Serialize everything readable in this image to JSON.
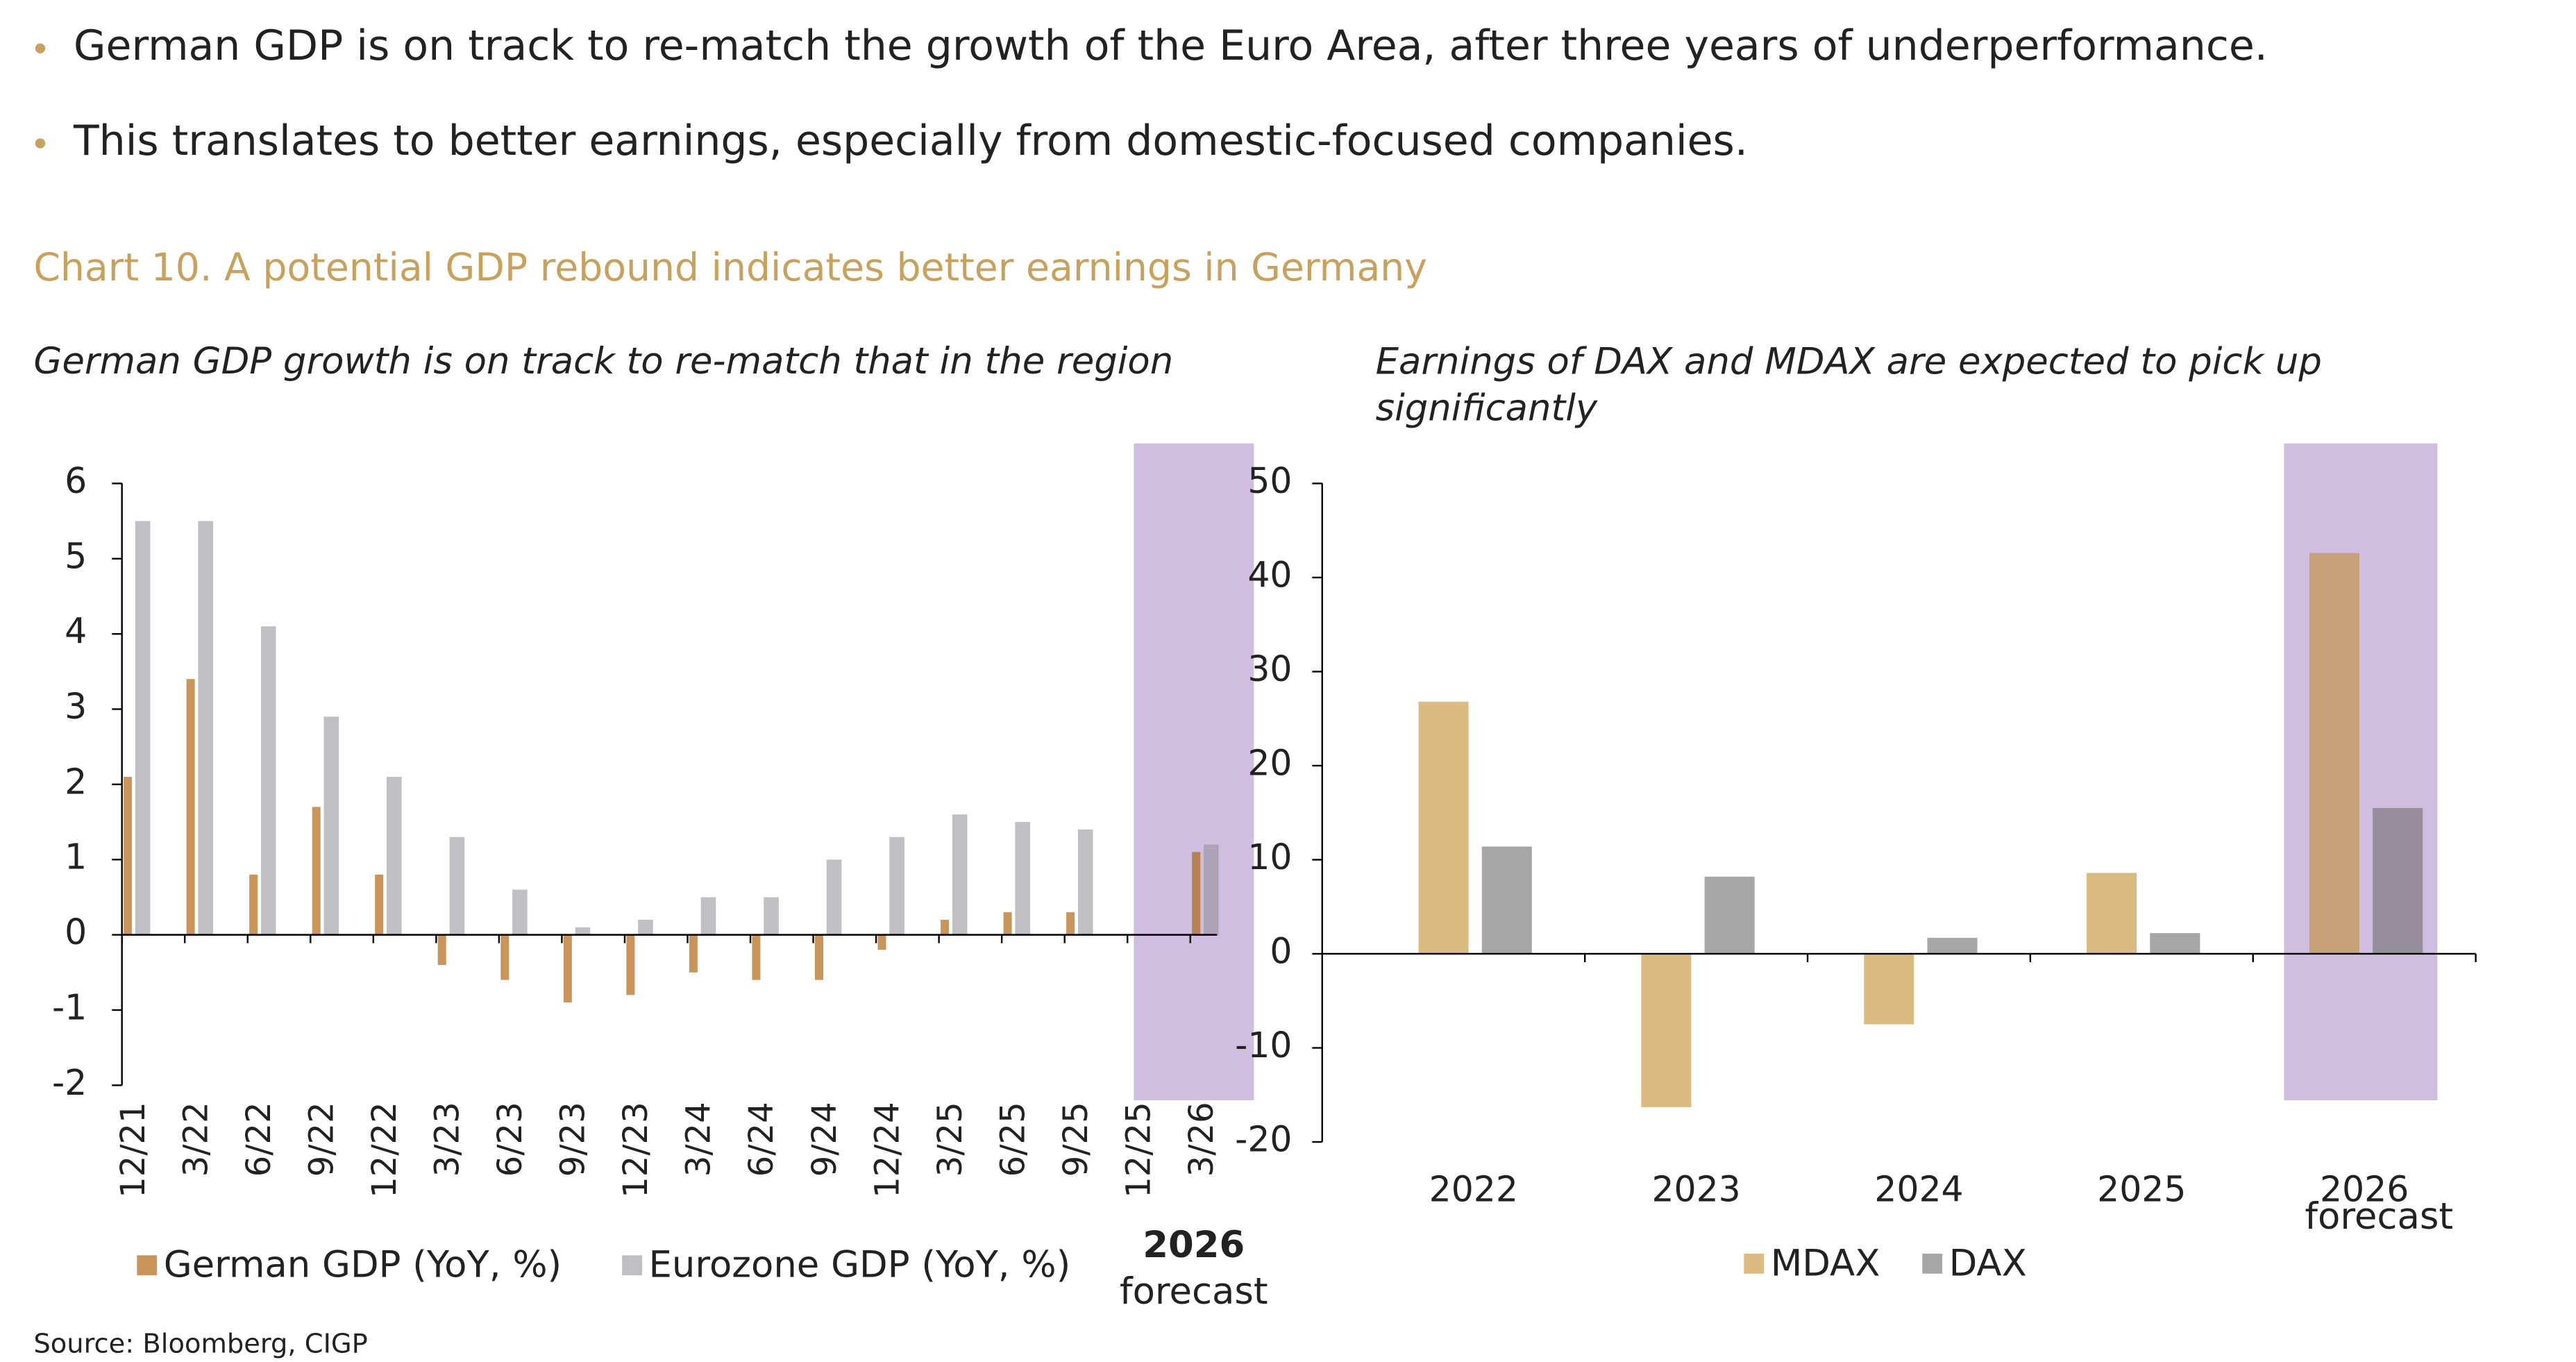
{
  "bullets": [
    "German GDP is on track to re-match the growth of the Euro Area, after three years of underperformance.",
    "This translates to better earnings, especially from domestic-focused companies."
  ],
  "title": "Chart 10. A potential GDP rebound indicates better earnings in Germany",
  "source": "Source: Bloomberg, CIGP",
  "chart_data": [
    {
      "type": "bar",
      "subtitle": "German GDP growth is on track to re-match that in the region",
      "categories": [
        "12/21",
        "3/22",
        "6/22",
        "9/22",
        "12/22",
        "3/23",
        "6/23",
        "9/23",
        "12/23",
        "3/24",
        "6/24",
        "9/24",
        "12/24",
        "3/25",
        "6/25",
        "9/25",
        "12/25",
        "3/26"
      ],
      "series": [
        {
          "name": "German GDP (YoY, %)",
          "color": "#c9955a",
          "values": [
            2.1,
            3.4,
            0.8,
            1.7,
            0.8,
            -0.4,
            -0.6,
            -0.9,
            -0.8,
            -0.5,
            -0.6,
            -0.6,
            -0.2,
            0.2,
            0.3,
            0.3,
            null,
            1.1
          ]
        },
        {
          "name": "Eurozone GDP (YoY, %)",
          "color": "#c0bfc4",
          "values": [
            5.5,
            5.5,
            4.1,
            2.9,
            2.1,
            1.3,
            0.6,
            0.1,
            0.2,
            0.5,
            0.5,
            1.0,
            1.3,
            1.6,
            1.5,
            1.4,
            null,
            1.2
          ]
        }
      ],
      "ylim": [
        -2,
        6
      ],
      "yticks": [
        -2,
        -1,
        0,
        1,
        2,
        3,
        4,
        5,
        6
      ],
      "highlight_color": "#e6dcef",
      "annotation": [
        "2026",
        "forecast"
      ]
    },
    {
      "type": "bar",
      "subtitle": "Earnings of DAX and MDAX are expected to pick up significantly",
      "categories": [
        "2022",
        "2023",
        "2024",
        "2025",
        "2026"
      ],
      "series": [
        {
          "name": "MDAX",
          "color": "#dcbb82",
          "values": [
            26.8,
            -16.3,
            -7.5,
            8.6,
            42.6
          ]
        },
        {
          "name": "DAX",
          "color": "#a6a6a6",
          "values": [
            11.4,
            8.2,
            1.7,
            2.2,
            15.5
          ]
        }
      ],
      "ylim": [
        -20,
        50
      ],
      "yticks": [
        -20,
        -10,
        0,
        10,
        20,
        30,
        40,
        50
      ],
      "highlight_color": "#e6dcef",
      "annotation": [
        "forecast"
      ]
    }
  ]
}
